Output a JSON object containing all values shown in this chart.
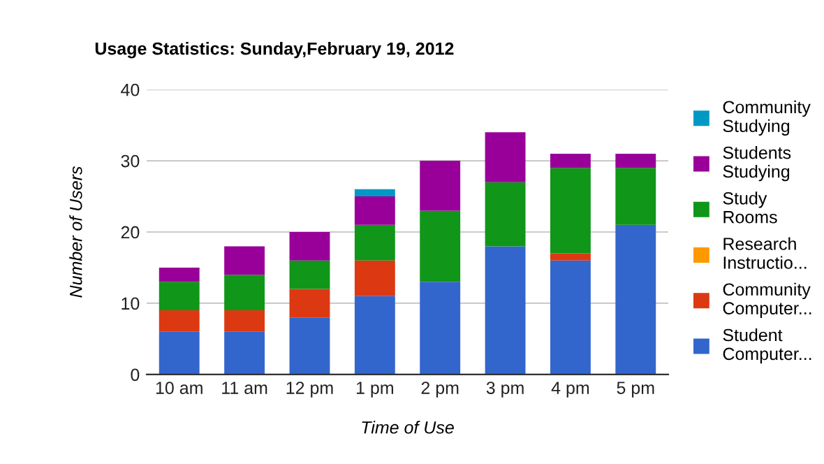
{
  "chart_data": {
    "type": "bar",
    "stacked": true,
    "title": "Usage Statistics: Sunday,February 19, 2012",
    "xlabel": "Time of Use",
    "ylabel": "Number of Users",
    "categories": [
      "10 am",
      "11 am",
      "12 pm",
      "1 pm",
      "2 pm",
      "3 pm",
      "4 pm",
      "5 pm"
    ],
    "series": [
      {
        "name": "Student\nComputer...",
        "color": "#3366cc",
        "values": [
          6,
          6,
          8,
          11,
          13,
          18,
          16,
          21
        ]
      },
      {
        "name": "Community\nComputer...",
        "color": "#dc3912",
        "values": [
          3,
          3,
          4,
          5,
          0,
          0,
          1,
          0
        ]
      },
      {
        "name": "Research\nInstructio...",
        "color": "#ff9900",
        "values": [
          0,
          0,
          0,
          0,
          0,
          0,
          0,
          0
        ]
      },
      {
        "name": "Study\nRooms",
        "color": "#109618",
        "values": [
          4,
          5,
          4,
          5,
          10,
          9,
          12,
          8
        ]
      },
      {
        "name": "Students\nStudying",
        "color": "#990099",
        "values": [
          2,
          4,
          4,
          4,
          7,
          7,
          2,
          2
        ]
      },
      {
        "name": "Community\nStudying",
        "color": "#0099c6",
        "values": [
          0,
          0,
          0,
          1,
          0,
          0,
          0,
          0
        ]
      }
    ],
    "ylim": [
      0,
      40
    ],
    "yticks": [
      0,
      10,
      20,
      30,
      40
    ],
    "grid": "y",
    "legend": "right"
  }
}
